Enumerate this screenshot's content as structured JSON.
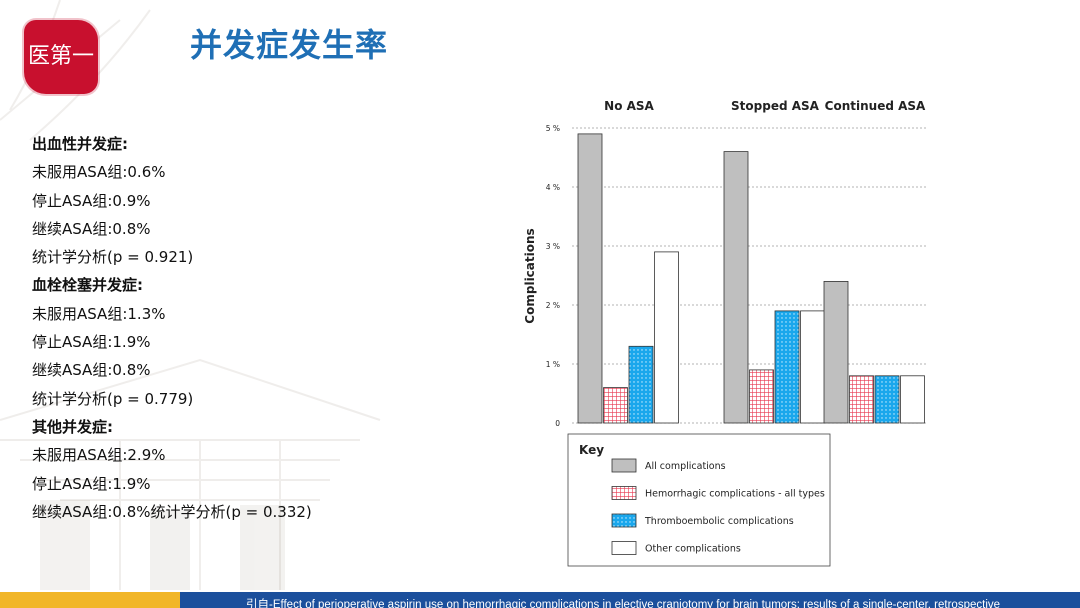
{
  "title": "并发症发生率",
  "seal_text": "医第一",
  "stats": [
    {
      "text": "出血性并发症:",
      "heading": true
    },
    {
      "text": "未服用ASA组:0.6%",
      "heading": false
    },
    {
      "text": "停止ASA组:0.9%",
      "heading": false
    },
    {
      "text": "继续ASA组:0.8%",
      "heading": false
    },
    {
      "text": "统计学分析(p = 0.921)",
      "heading": false
    },
    {
      "text": "血栓栓塞并发症:",
      "heading": true
    },
    {
      "text": "未服用ASA组:1.3%",
      "heading": false
    },
    {
      "text": "停止ASA组:1.9%",
      "heading": false
    },
    {
      "text": "继续ASA组:0.8%",
      "heading": false
    },
    {
      "text": "统计学分析(p = 0.779)",
      "heading": false
    },
    {
      "text": "其他并发症:",
      "heading": true
    },
    {
      "text": "未服用ASA组:2.9%",
      "heading": false
    },
    {
      "text": "停止ASA组:1.9%",
      "heading": false
    },
    {
      "text": "继续ASA组:0.8%统计学分析(p = 0.332)",
      "heading": false
    }
  ],
  "chart_data": {
    "type": "bar",
    "categories": [
      "No ASA",
      "Stopped ASA",
      "Continued ASA"
    ],
    "series": [
      {
        "name": "All complications",
        "values": [
          4.9,
          4.6,
          2.4
        ],
        "color": "#bfbfbf",
        "pattern": "solid-gray"
      },
      {
        "name": "Hemorrhagic complications - all types",
        "values": [
          0.6,
          0.9,
          0.8
        ],
        "color": "#e8384f",
        "pattern": "red-grid"
      },
      {
        "name": "Thromboembolic complications",
        "values": [
          1.3,
          1.9,
          0.8
        ],
        "color": "#1aa7ec",
        "pattern": "blue-dots"
      },
      {
        "name": "Other complications",
        "values": [
          2.9,
          1.9,
          0.8
        ],
        "color": "#ffffff",
        "pattern": "white"
      }
    ],
    "ylabel": "Complications",
    "yticks": [
      "0",
      "1 %",
      "2 %",
      "3 %",
      "4 %",
      "5 %"
    ],
    "ylim": [
      0,
      5
    ],
    "legend_title": "Key",
    "legend_position": "bottom",
    "grid": true
  },
  "footer": {
    "text": "引自-Effect of perioperative aspirin use on hemorrhagic complications in elective craniotomy for brain tumors: results of a single-center, retrospective"
  }
}
